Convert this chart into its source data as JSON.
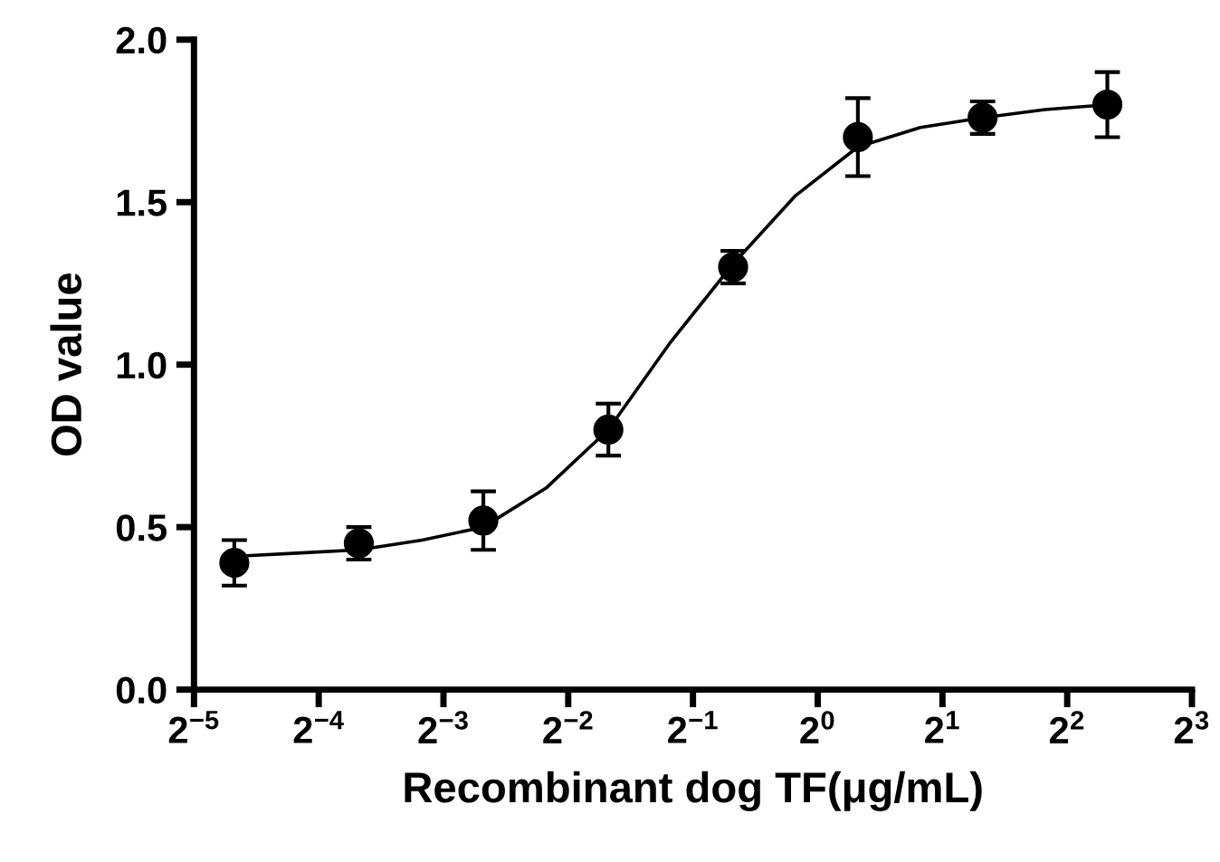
{
  "chart_data": {
    "type": "scatter",
    "xlabel": "Recombinant dog TF(μg/mL)",
    "ylabel": "OD value",
    "log": "x",
    "grid": false,
    "xlim": [
      0.03125,
      8
    ],
    "ylim": [
      0,
      2.0
    ],
    "xticks": [
      {
        "value": 0.03125,
        "label": "2$^{−5}$"
      },
      {
        "value": 0.0625,
        "label": "2$^{−4}$"
      },
      {
        "value": 0.125,
        "label": "2$^{−3}$"
      },
      {
        "value": 0.25,
        "label": "2$^{−2}$"
      },
      {
        "value": 0.5,
        "label": "2$^{−1}$"
      },
      {
        "value": 1,
        "label": "2$^{0}$"
      },
      {
        "value": 2,
        "label": "2$^{1}$"
      },
      {
        "value": 4,
        "label": "2$^{2}$"
      },
      {
        "value": 8,
        "label": "2$^{3}$"
      }
    ],
    "yticks": [
      {
        "value": 0,
        "label": "0.0"
      },
      {
        "value": 0.5,
        "label": "0.5"
      },
      {
        "value": 1.0,
        "label": "1.0"
      },
      {
        "value": 1.5,
        "label": "1.5"
      },
      {
        "value": 2.0,
        "label": "2.0"
      }
    ],
    "series": [
      {
        "type": "line",
        "color": "#000000",
        "marker": "none",
        "line_style": "solid",
        "x": [
          0.0391,
          0.0553,
          0.0781,
          0.111,
          0.156,
          0.221,
          0.3125,
          0.442,
          0.625,
          0.884,
          1.25,
          1.77,
          2.5,
          3.54,
          5
        ],
        "values": [
          0.41,
          0.42,
          0.43,
          0.46,
          0.5,
          0.62,
          0.8,
          1.07,
          1.31,
          1.52,
          1.67,
          1.73,
          1.76,
          1.785,
          1.8
        ]
      },
      {
        "color": "#000000",
        "marker": "circle",
        "x": [
          0.0391,
          0.0781,
          0.156,
          0.3125,
          0.625,
          1.25,
          2.5,
          5
        ],
        "values": [
          0.39,
          0.45,
          0.52,
          0.8,
          1.3,
          1.7,
          1.76,
          1.8
        ],
        "errors": [
          0.07,
          0.05,
          0.09,
          0.08,
          0.05,
          0.12,
          0.05,
          0.1
        ]
      }
    ]
  }
}
